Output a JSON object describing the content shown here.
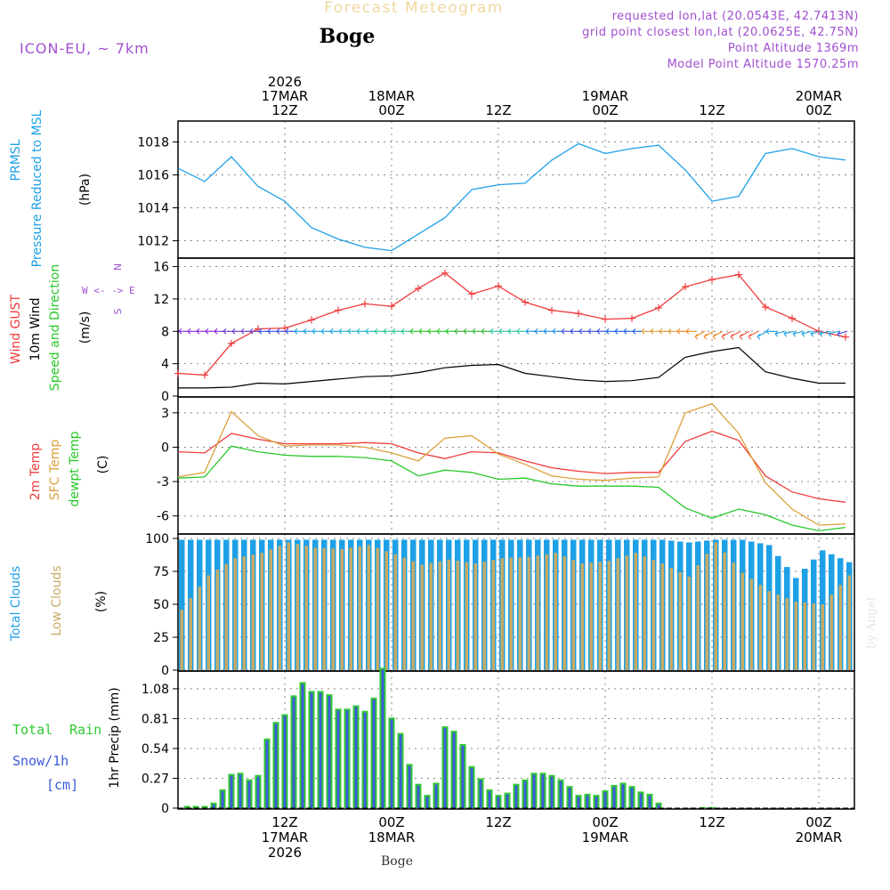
{
  "header": {
    "title": "Forecast Meteogram",
    "location": "Boge",
    "model": "ICON-EU, ~ 7km",
    "requested": "requested lon,lat (20.0543E, 42.7413N)",
    "gridpoint": "grid point closest lon,lat (20.0625E, 42.75N)",
    "point_alt": "Point Altitude 1369m",
    "model_alt": "Model Point Altitude 1570.25m"
  },
  "footer": {
    "location": "Boge",
    "credit": "by Angel"
  },
  "time_axis": {
    "top": [
      {
        "h": 12,
        "lines": [
          "2026",
          "17MAR",
          "12Z"
        ]
      },
      {
        "h": 24,
        "lines": [
          "18MAR",
          "00Z"
        ]
      },
      {
        "h": 36,
        "lines": [
          "12Z"
        ]
      },
      {
        "h": 48,
        "lines": [
          "19MAR",
          "00Z"
        ]
      },
      {
        "h": 60,
        "lines": [
          "12Z"
        ]
      },
      {
        "h": 72,
        "lines": [
          "20MAR",
          "00Z"
        ]
      }
    ],
    "bottom": [
      {
        "h": 12,
        "lines": [
          "12Z",
          "17MAR",
          "2026"
        ]
      },
      {
        "h": 24,
        "lines": [
          "00Z",
          "18MAR"
        ]
      },
      {
        "h": 36,
        "lines": [
          "12Z"
        ]
      },
      {
        "h": 48,
        "lines": [
          "00Z",
          "19MAR"
        ]
      },
      {
        "h": 60,
        "lines": [
          "12Z"
        ]
      },
      {
        "h": 72,
        "lines": [
          "00Z",
          "20MAR"
        ]
      }
    ]
  },
  "panels": {
    "pressure": {
      "title1": "PRMSL",
      "title2": "Pressure Reduced to MSL",
      "unit": "(hPa)",
      "color": "#1ea0e6"
    },
    "wind": {
      "gust": "Wind GUST",
      "wind1": "10m Wind",
      "wind2": "Speed and Direction",
      "unit": "(m/s)",
      "compass": [
        "N",
        "W <- -> E",
        "S"
      ]
    },
    "temp": {
      "t2m": "2m Temp",
      "sfc": "SFC Temp",
      "dew": "dewpt Temp",
      "unit": "(C)"
    },
    "clouds": {
      "total": "Total Clouds",
      "low": "Low Clouds",
      "unit": "(%)"
    },
    "precip": {
      "total": "Total",
      "rain": "Rain",
      "snow": "Snow/1h",
      "snow_unit": "[cm]",
      "ylabel": "1hr Precip (mm)"
    }
  },
  "colors": {
    "pressure": "#1ea0e6",
    "gust": "#f03c3c",
    "wind": "#000000",
    "t2m": "#f03c3c",
    "sfc": "#dca03c",
    "dew": "#28c828",
    "total_cloud": "#1ea0e6",
    "low_cloud": "#c8aa64",
    "rain": "#32c832",
    "snow": "#3c5adc",
    "purple": "#a050d0"
  },
  "chart_data": [
    {
      "type": "line",
      "name": "PRMSL",
      "unit": "hPa",
      "ylim": [
        1011,
        1019
      ],
      "yticks": [
        1012,
        1014,
        1016,
        1018
      ],
      "x": [
        0,
        3,
        6,
        9,
        12,
        15,
        18,
        21,
        24,
        27,
        30,
        33,
        36,
        39,
        42,
        45,
        48,
        51,
        54,
        57,
        60,
        63,
        66,
        69,
        72,
        75
      ],
      "values": [
        1016.4,
        1015.6,
        1017.1,
        1015.3,
        1014.4,
        1012.8,
        1012.1,
        1011.6,
        1011.4,
        1012.4,
        1013.4,
        1015.1,
        1015.4,
        1015.5,
        1016.9,
        1017.9,
        1017.3,
        1017.6,
        1017.8,
        1016.3,
        1014.4,
        1014.7,
        1017.3,
        1017.6,
        1017.1,
        1016.9
      ]
    },
    {
      "type": "line",
      "name": "Wind GUST",
      "unit": "m/s",
      "ylim": [
        0,
        16.5
      ],
      "yticks": [
        0,
        4,
        8,
        12,
        16
      ],
      "x": [
        0,
        3,
        6,
        9,
        12,
        15,
        18,
        21,
        24,
        27,
        30,
        33,
        36,
        39,
        42,
        45,
        48,
        51,
        54,
        57,
        60,
        63,
        66,
        69,
        72,
        75
      ],
      "values": [
        2.8,
        2.6,
        6.5,
        8.3,
        8.4,
        9.4,
        10.6,
        11.4,
        11.1,
        13.3,
        15.2,
        12.6,
        13.6,
        11.6,
        10.6,
        10.2,
        9.5,
        9.6,
        10.9,
        13.5,
        14.4,
        15.0,
        11.0,
        9.6,
        8.0,
        7.3
      ]
    },
    {
      "type": "line",
      "name": "10m Wind speed",
      "unit": "m/s",
      "x": [
        0,
        3,
        6,
        9,
        12,
        15,
        18,
        21,
        24,
        27,
        30,
        33,
        36,
        39,
        42,
        45,
        48,
        51,
        54,
        57,
        60,
        63,
        66,
        69,
        72,
        75
      ],
      "values": [
        1.0,
        1.0,
        1.1,
        1.6,
        1.5,
        1.8,
        2.1,
        2.4,
        2.5,
        2.9,
        3.5,
        3.8,
        3.9,
        2.8,
        2.4,
        2.0,
        1.8,
        1.9,
        2.3,
        4.8,
        5.5,
        6.0,
        3.0,
        2.2,
        1.6,
        1.6
      ]
    },
    {
      "type": "line",
      "name": "2m Temp",
      "unit": "C",
      "ylim": [
        -7.5,
        4
      ],
      "yticks": [
        3,
        0,
        -3,
        -6
      ],
      "x": [
        0,
        3,
        6,
        9,
        12,
        15,
        18,
        21,
        24,
        27,
        30,
        33,
        36,
        39,
        42,
        45,
        48,
        51,
        54,
        57,
        60,
        63,
        66,
        69,
        72,
        75
      ],
      "values": [
        -0.4,
        -0.5,
        1.2,
        0.7,
        0.3,
        0.3,
        0.3,
        0.4,
        0.3,
        -0.5,
        -1.0,
        -0.4,
        -0.5,
        -1.2,
        -1.8,
        -2.1,
        -2.3,
        -2.2,
        -2.2,
        0.5,
        1.4,
        0.6,
        -2.5,
        -3.9,
        -4.5,
        -4.8
      ]
    },
    {
      "type": "line",
      "name": "SFC Temp",
      "unit": "C",
      "x": [
        0,
        3,
        6,
        9,
        12,
        15,
        18,
        21,
        24,
        27,
        30,
        33,
        36,
        39,
        42,
        45,
        48,
        51,
        54,
        57,
        60,
        63,
        66,
        69,
        72,
        75
      ],
      "values": [
        -2.6,
        -2.2,
        3.1,
        1.0,
        0.1,
        0.2,
        0.2,
        0.0,
        -0.5,
        -1.2,
        0.8,
        1.0,
        -0.6,
        -1.5,
        -2.5,
        -2.8,
        -2.9,
        -2.7,
        -2.6,
        3.0,
        3.8,
        1.2,
        -3.1,
        -5.4,
        -6.8,
        -6.7
      ]
    },
    {
      "type": "line",
      "name": "dewpt Temp",
      "unit": "C",
      "x": [
        0,
        3,
        6,
        9,
        12,
        15,
        18,
        21,
        24,
        27,
        30,
        33,
        36,
        39,
        42,
        45,
        48,
        51,
        54,
        57,
        60,
        63,
        66,
        69,
        72,
        75
      ],
      "values": [
        -2.7,
        -2.6,
        0.1,
        -0.4,
        -0.7,
        -0.8,
        -0.8,
        -0.9,
        -1.2,
        -2.5,
        -2.0,
        -2.2,
        -2.8,
        -2.7,
        -3.2,
        -3.4,
        -3.4,
        -3.4,
        -3.5,
        -5.3,
        -6.2,
        -5.4,
        -5.9,
        -6.8,
        -7.3,
        -7.0
      ]
    },
    {
      "type": "bar",
      "name": "Total Clouds",
      "unit": "%",
      "ylim": [
        0,
        100
      ],
      "yticks": [
        0,
        25,
        50,
        75,
        100
      ],
      "x": [
        0,
        3,
        6,
        9,
        12,
        15,
        18,
        21,
        24,
        27,
        30,
        33,
        36,
        39,
        42,
        45,
        48,
        51,
        54,
        57,
        60,
        63,
        66,
        69,
        72,
        75
      ],
      "values": [
        99,
        99,
        99,
        99,
        99,
        99,
        99,
        99,
        99,
        99,
        99,
        99,
        99,
        99,
        99,
        99,
        99,
        99,
        99,
        97,
        99,
        99,
        95,
        70,
        91,
        82
      ]
    },
    {
      "type": "bar",
      "name": "Low Clouds",
      "unit": "%",
      "x": [
        0,
        3,
        6,
        9,
        12,
        15,
        18,
        21,
        24,
        27,
        30,
        33,
        36,
        39,
        42,
        45,
        48,
        51,
        54,
        57,
        60,
        63,
        66,
        69,
        72,
        75
      ],
      "values": [
        46,
        72,
        85,
        89,
        97,
        93,
        92,
        95,
        88,
        80,
        84,
        81,
        85,
        86,
        89,
        81,
        83,
        89,
        81,
        71,
        97,
        74,
        60,
        52,
        50,
        72
      ]
    },
    {
      "type": "bar",
      "name": "1hr Precip",
      "unit": "mm",
      "ylim": [
        0,
        1.2
      ],
      "yticks": [
        0,
        0.27,
        0.54,
        0.81,
        1.08
      ],
      "x": [
        1,
        2,
        3,
        4,
        5,
        6,
        7,
        8,
        9,
        10,
        11,
        12,
        13,
        14,
        15,
        16,
        17,
        18,
        19,
        20,
        21,
        22,
        23,
        24,
        25,
        26,
        27,
        28,
        29,
        30,
        31,
        32,
        33,
        34,
        35,
        36,
        37,
        38,
        39,
        40,
        41,
        42,
        43,
        44,
        45,
        46,
        47,
        48,
        49,
        50,
        51,
        52,
        53,
        54,
        59,
        60
      ],
      "values": [
        0.02,
        0.02,
        0.02,
        0.05,
        0.17,
        0.31,
        0.32,
        0.26,
        0.3,
        0.63,
        0.78,
        0.85,
        1.02,
        1.14,
        1.06,
        1.06,
        1.03,
        0.9,
        0.9,
        0.93,
        0.88,
        1.0,
        1.27,
        0.82,
        0.68,
        0.4,
        0.22,
        0.12,
        0.23,
        0.74,
        0.7,
        0.58,
        0.38,
        0.27,
        0.17,
        0.12,
        0.14,
        0.22,
        0.26,
        0.32,
        0.32,
        0.3,
        0.26,
        0.2,
        0.12,
        0.13,
        0.12,
        0.16,
        0.21,
        0.23,
        0.2,
        0.15,
        0.13,
        0.05,
        0.01,
        0.01
      ]
    }
  ]
}
